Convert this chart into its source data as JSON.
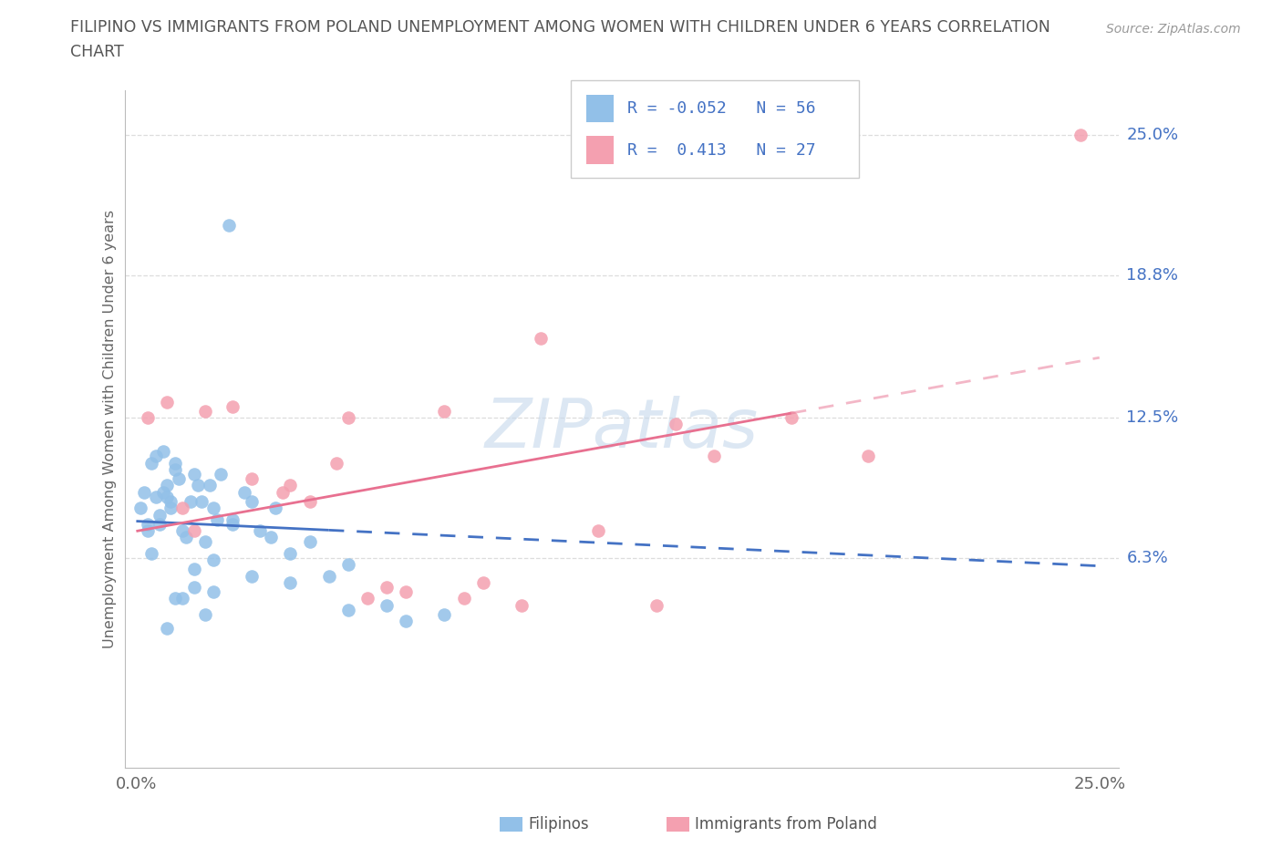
{
  "title_line1": "FILIPINO VS IMMIGRANTS FROM POLAND UNEMPLOYMENT AMONG WOMEN WITH CHILDREN UNDER 6 YEARS CORRELATION",
  "title_line2": "CHART",
  "source": "Source: ZipAtlas.com",
  "ylabel": "Unemployment Among Women with Children Under 6 years",
  "xlim_min": -0.3,
  "xlim_max": 25.5,
  "ylim_min": -3.0,
  "ylim_max": 27.0,
  "right_ytick_vals": [
    6.3,
    12.5,
    18.8,
    25.0
  ],
  "right_ytick_labels": [
    "6.3%",
    "12.5%",
    "18.8%",
    "25.0%"
  ],
  "xtick_vals": [
    0.0,
    25.0
  ],
  "xtick_labels": [
    "0.0%",
    "25.0%"
  ],
  "filipino_color": "#92C0E8",
  "polish_color": "#F4A0B0",
  "trend_blue_solid_color": "#4472C4",
  "trend_pink_solid_color": "#E87090",
  "R_filipino": -0.052,
  "N_filipino": 56,
  "R_polish": 0.413,
  "N_polish": 27,
  "background_color": "#ffffff",
  "grid_color": "#dddddd",
  "title_color": "#555555",
  "source_color": "#999999",
  "axis_color": "#bbbbbb",
  "right_label_color": "#4472C4",
  "legend_R_color": "#4472C4",
  "bottom_legend_color": "#555555",
  "fil_x": [
    0.1,
    0.2,
    0.3,
    0.4,
    0.5,
    0.6,
    0.7,
    0.8,
    0.9,
    1.0,
    0.3,
    0.5,
    0.7,
    0.9,
    1.1,
    1.3,
    1.5,
    1.7,
    1.9,
    2.1,
    0.4,
    0.6,
    0.8,
    1.0,
    1.2,
    1.4,
    1.6,
    1.8,
    2.0,
    2.2,
    2.5,
    2.8,
    3.2,
    3.6,
    4.0,
    4.5,
    5.0,
    5.5,
    3.0,
    3.5,
    1.5,
    2.0,
    2.5,
    3.0,
    1.0,
    1.5,
    2.0,
    4.0,
    5.5,
    7.0,
    2.4,
    6.5,
    8.0,
    0.8,
    1.2,
    1.8
  ],
  "fil_y": [
    8.5,
    9.2,
    7.8,
    10.5,
    9.0,
    8.2,
    11.0,
    9.5,
    8.8,
    10.2,
    7.5,
    10.8,
    9.2,
    8.5,
    9.8,
    7.2,
    10.0,
    8.8,
    9.5,
    8.0,
    6.5,
    7.8,
    9.0,
    10.5,
    7.5,
    8.8,
    9.5,
    7.0,
    8.5,
    10.0,
    8.0,
    9.2,
    7.5,
    8.5,
    6.5,
    7.0,
    5.5,
    6.0,
    8.8,
    7.2,
    5.8,
    6.2,
    7.8,
    5.5,
    4.5,
    5.0,
    4.8,
    5.2,
    4.0,
    3.5,
    21.0,
    4.2,
    3.8,
    3.2,
    4.5,
    3.8
  ],
  "pol_x": [
    0.3,
    0.8,
    1.2,
    1.8,
    2.5,
    3.0,
    3.8,
    4.5,
    5.2,
    6.0,
    7.0,
    8.0,
    9.0,
    10.5,
    12.0,
    13.5,
    15.0,
    17.0,
    1.5,
    4.0,
    5.5,
    6.5,
    8.5,
    10.0,
    14.0,
    19.0,
    24.5
  ],
  "pol_y": [
    12.5,
    13.2,
    8.5,
    12.8,
    13.0,
    9.8,
    9.2,
    8.8,
    10.5,
    4.5,
    4.8,
    12.8,
    5.2,
    16.0,
    7.5,
    4.2,
    10.8,
    12.5,
    7.5,
    9.5,
    12.5,
    5.0,
    4.5,
    4.2,
    12.2,
    10.8,
    25.0
  ],
  "fil_trend_x0": 0.0,
  "fil_trend_x_split": 5.0,
  "fil_trend_x1": 25.0,
  "pol_trend_x0": 0.0,
  "pol_trend_x_split": 17.0,
  "pol_trend_x1": 25.0
}
